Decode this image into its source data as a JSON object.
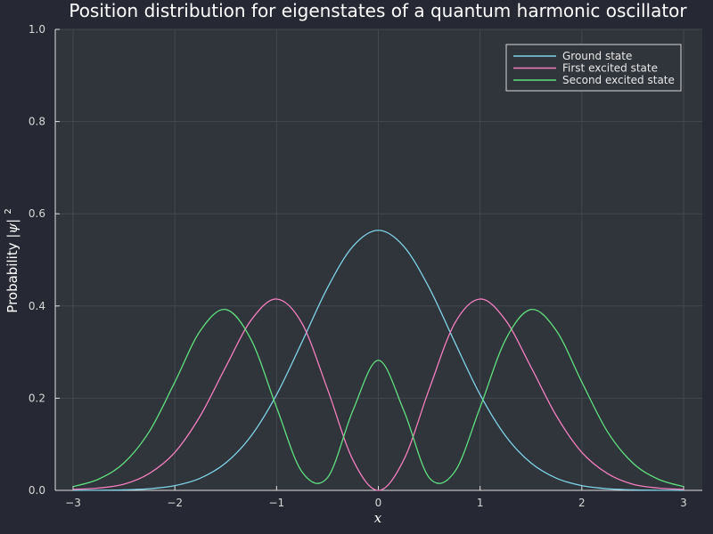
{
  "chart_data": {
    "type": "line",
    "title": "Position distribution for eigenstates of a quantum harmonic oscillator",
    "xlabel": "x",
    "ylabel_prefix": "Probability ",
    "ylabel_symbol": "|ψ|",
    "ylabel_exponent": "2",
    "xlim": [
      -3,
      3
    ],
    "ylim": [
      0,
      1
    ],
    "xticks": [
      -3,
      -2,
      -1,
      0,
      1,
      2,
      3
    ],
    "xtick_labels": [
      "−3",
      "−2",
      "−1",
      "0",
      "1",
      "2",
      "3"
    ],
    "yticks": [
      0,
      0.2,
      0.4,
      0.6,
      0.8,
      1.0
    ],
    "ytick_labels": [
      "0.0",
      "0.2",
      "0.4",
      "0.6",
      "0.8",
      "1.0"
    ],
    "grid": true,
    "legend_position": "top-right",
    "series": [
      {
        "name": "Ground state",
        "color": "#7fd4e8",
        "x": [
          -3,
          -2.75,
          -2.5,
          -2.25,
          -2,
          -1.75,
          -1.5,
          -1.25,
          -1,
          -0.75,
          -0.5,
          -0.25,
          0,
          0.25,
          0.5,
          0.75,
          1,
          1.25,
          1.5,
          1.75,
          2,
          2.25,
          2.5,
          2.75,
          3
        ],
        "y": [
          0.0001,
          0.0003,
          0.0011,
          0.0036,
          0.0103,
          0.0264,
          0.0595,
          0.1182,
          0.2076,
          0.322,
          0.4394,
          0.5293,
          0.5642,
          0.5293,
          0.4394,
          0.322,
          0.2076,
          0.1182,
          0.0595,
          0.0264,
          0.0103,
          0.0036,
          0.0011,
          0.0003,
          0.0001
        ]
      },
      {
        "name": "First excited state",
        "color": "#f47fbf",
        "x": [
          -3,
          -2.75,
          -2.5,
          -2.25,
          -2,
          -1.75,
          -1.5,
          -1.25,
          -1,
          -0.75,
          -0.5,
          -0.25,
          0,
          0.25,
          0.5,
          0.75,
          1,
          1.25,
          1.5,
          1.75,
          2,
          2.25,
          2.5,
          2.75,
          3
        ],
        "y": [
          0.0022,
          0.0051,
          0.0135,
          0.0369,
          0.0825,
          0.1617,
          0.2677,
          0.3693,
          0.4151,
          0.3622,
          0.2197,
          0.0662,
          0,
          0.0662,
          0.2197,
          0.3622,
          0.4151,
          0.3693,
          0.2677,
          0.1617,
          0.0825,
          0.0369,
          0.0135,
          0.0051,
          0.0022
        ]
      },
      {
        "name": "Second excited state",
        "color": "#5fe07f",
        "x": [
          -3,
          -2.75,
          -2.5,
          -2.25,
          -2,
          -1.75,
          -1.5,
          -1.25,
          -1,
          -0.75,
          -0.5,
          -0.25,
          0,
          0.25,
          0.5,
          0.75,
          1,
          1.25,
          1.5,
          1.75,
          2,
          2.25,
          2.5,
          2.75,
          3
        ],
        "y": [
          0.0082,
          0.0244,
          0.0596,
          0.128,
          0.2349,
          0.3463,
          0.3923,
          0.3269,
          0.18,
          0.0402,
          0.0275,
          0.1733,
          0.2821,
          0.1733,
          0.0275,
          0.0402,
          0.18,
          0.3269,
          0.3923,
          0.3463,
          0.2349,
          0.128,
          0.0596,
          0.0244,
          0.0082
        ]
      }
    ]
  }
}
